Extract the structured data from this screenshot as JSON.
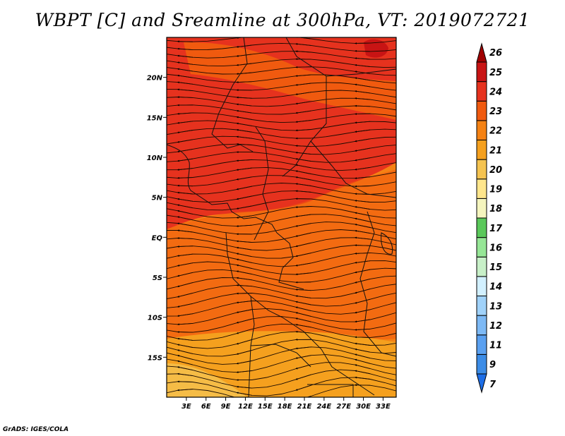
{
  "title": "WBPT [C] and Sreamline at 300hPa, VT: 2019072721",
  "credit": "GrADS: IGES/COLA",
  "map": {
    "lon_range": [
      0,
      35
    ],
    "lat_range": [
      -20,
      25
    ],
    "lon_ticks": [
      {
        "value": 3,
        "label": "3E"
      },
      {
        "value": 6,
        "label": "6E"
      },
      {
        "value": 9,
        "label": "9E"
      },
      {
        "value": 12,
        "label": "12E"
      },
      {
        "value": 15,
        "label": "15E"
      },
      {
        "value": 18,
        "label": "18E"
      },
      {
        "value": 21,
        "label": "21E"
      },
      {
        "value": 24,
        "label": "24E"
      },
      {
        "value": 27,
        "label": "27E"
      },
      {
        "value": 30,
        "label": "30E"
      },
      {
        "value": 33,
        "label": "33E"
      }
    ],
    "lat_ticks": [
      {
        "value": 20,
        "label": "20N"
      },
      {
        "value": 15,
        "label": "15N"
      },
      {
        "value": 10,
        "label": "10N"
      },
      {
        "value": 5,
        "label": "5N"
      },
      {
        "value": 0,
        "label": "EQ"
      },
      {
        "value": -5,
        "label": "5S"
      },
      {
        "value": -10,
        "label": "10S"
      },
      {
        "value": -15,
        "label": "15S"
      }
    ]
  },
  "colorbar": {
    "labels": [
      "7",
      "9",
      "11",
      "12",
      "13",
      "14",
      "15",
      "16",
      "17",
      "18",
      "19",
      "20",
      "21",
      "22",
      "23",
      "24",
      "25",
      "26"
    ],
    "colors": [
      "#1e6ee6",
      "#3c8ce6",
      "#5aa0f0",
      "#7db9f5",
      "#a0d2fa",
      "#d2f0ff",
      "#c8f0c8",
      "#96e696",
      "#5ac85a",
      "#f5f5be",
      "#ffe68c",
      "#f5c350",
      "#f5a01e",
      "#f58214",
      "#f05a0f",
      "#e6321e",
      "#c81414",
      "#a00000"
    ]
  },
  "field_colors": {
    "c20": "#f5c350",
    "c21": "#f5a01e",
    "c22": "#f58214",
    "c23": "#f05a0f",
    "c24": "#e6321e"
  }
}
